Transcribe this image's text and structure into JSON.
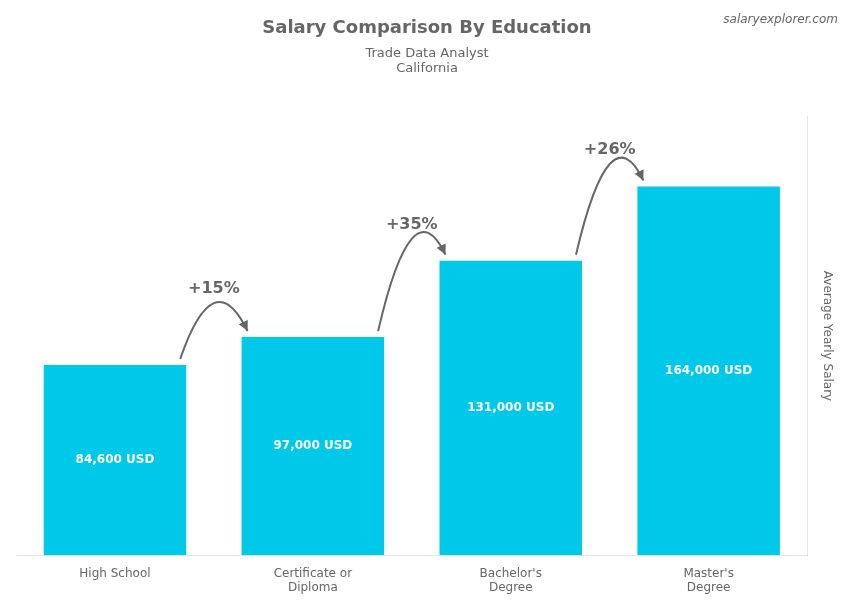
{
  "chart_data": {
    "type": "bar",
    "title": "Salary Comparison By Education",
    "subtitle": [
      "Trade Data Analyst",
      "California"
    ],
    "watermark": "salaryexplorer.com",
    "ylabel": "Average Yearly Salary",
    "categories": [
      "High School",
      "Certificate or\nDiploma",
      "Bachelor's\nDegree",
      "Master's\nDegree"
    ],
    "values": [
      84600,
      97000,
      131000,
      164000
    ],
    "value_labels": [
      "84,600 USD",
      "97,000 USD",
      "131,000 USD",
      "164,000 USD"
    ],
    "data_labels": true,
    "annotations": [
      "+15%",
      "+35%",
      "+26%"
    ],
    "color": "#00c8e8",
    "ylim": [
      0,
      195000
    ],
    "tick_labels": "x",
    "grid": false,
    "legend": false
  }
}
